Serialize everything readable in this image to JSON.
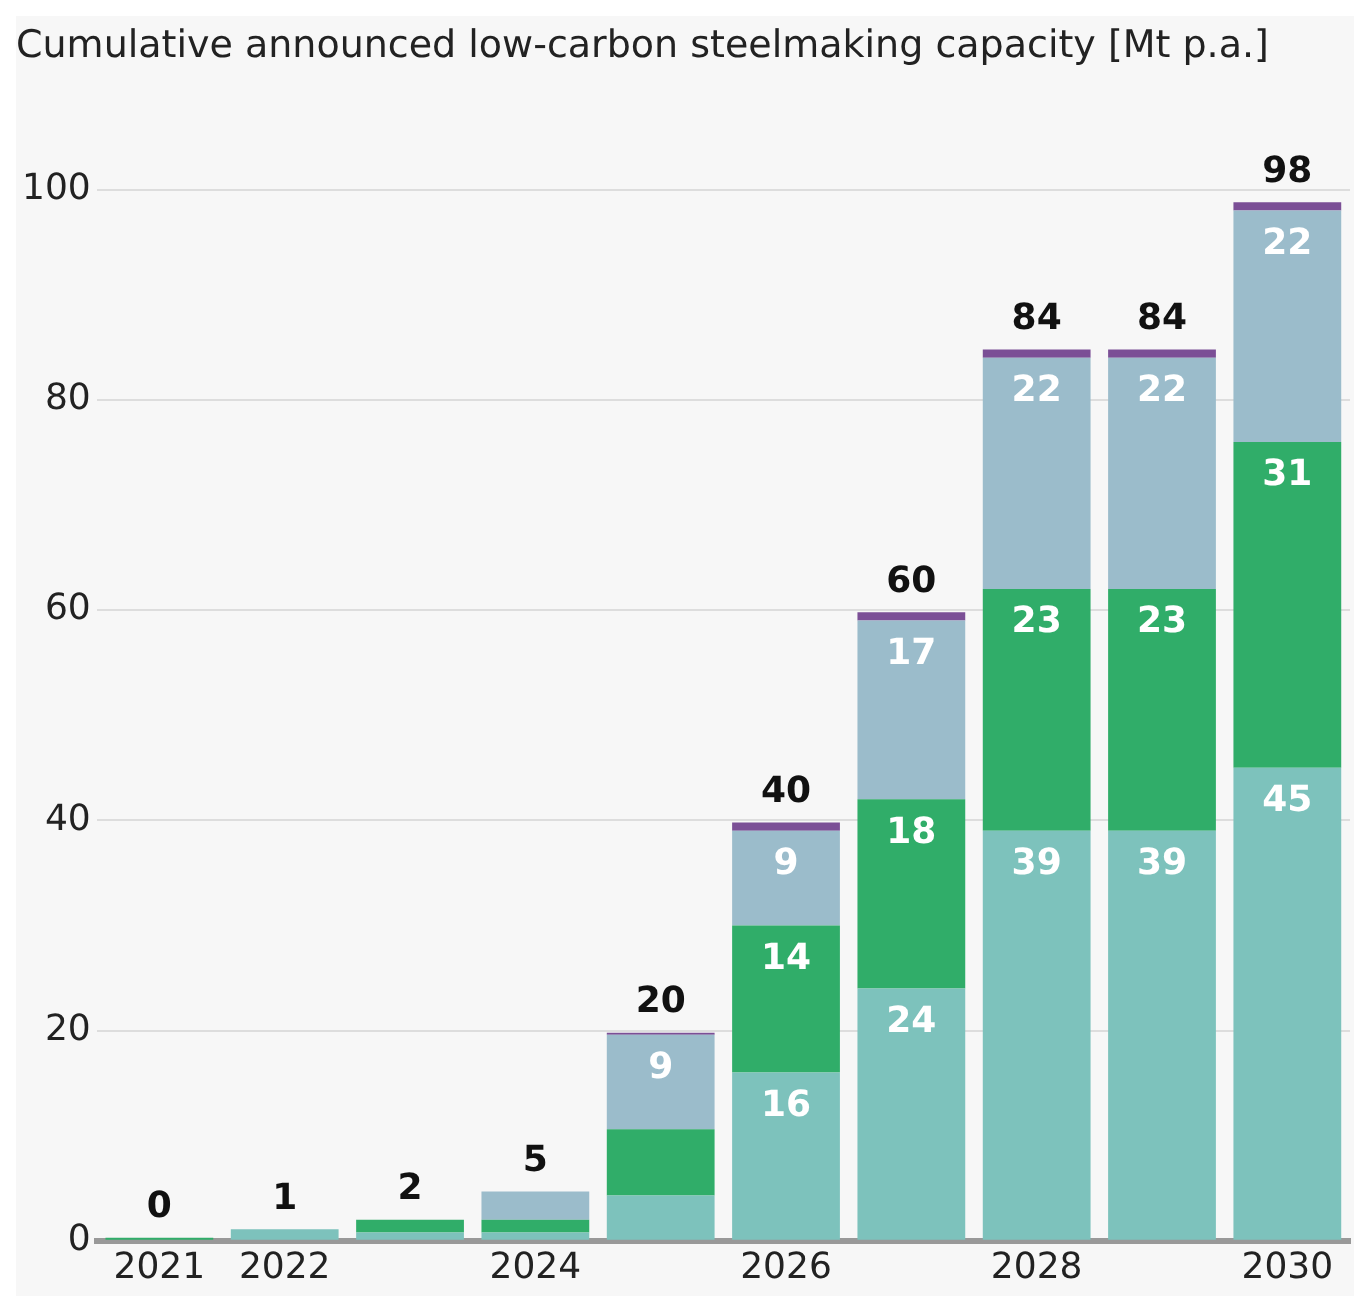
{
  "chart_data": {
    "type": "bar",
    "title": "Cumulative announced low-carbon steelmaking capacity [Mt p.a.]",
    "stacked": true,
    "categories": [
      "2021",
      "2022",
      null,
      "2024",
      null,
      "2026",
      null,
      "2028",
      null,
      "2030"
    ],
    "series": [
      {
        "color": "#7dc2bc",
        "values": [
          0,
          1.1,
          0.8,
          0.8,
          4.3,
          16,
          24,
          39,
          39,
          45
        ],
        "value_labels": [
          null,
          null,
          null,
          null,
          null,
          "16",
          "24",
          "39",
          "39",
          "45"
        ]
      },
      {
        "color": "#30ad69",
        "values": [
          0.3,
          0,
          1.2,
          1.2,
          6.3,
          14,
          18,
          23,
          23,
          31
        ],
        "value_labels": [
          null,
          null,
          null,
          null,
          null,
          "14",
          "18",
          "23",
          "23",
          "31"
        ]
      },
      {
        "color": "#9bbccb",
        "values": [
          0,
          0,
          0,
          2.7,
          9,
          9,
          17,
          22,
          22,
          22
        ],
        "value_labels": [
          null,
          null,
          null,
          null,
          "9",
          "9",
          "17",
          "22",
          "22",
          "22"
        ]
      },
      {
        "color": "#7b4f96",
        "values": [
          0,
          0,
          0,
          0,
          0.2,
          0.8,
          0.8,
          0.8,
          0.8,
          0.8
        ]
      }
    ],
    "totals": [
      "0",
      "1",
      "2",
      "5",
      "20",
      "40",
      "60",
      "84",
      "84",
      "98"
    ],
    "ylim": [
      0,
      100
    ],
    "yticks": [
      0,
      20,
      40,
      60,
      80,
      100
    ],
    "grid": "y",
    "legend": false
  }
}
